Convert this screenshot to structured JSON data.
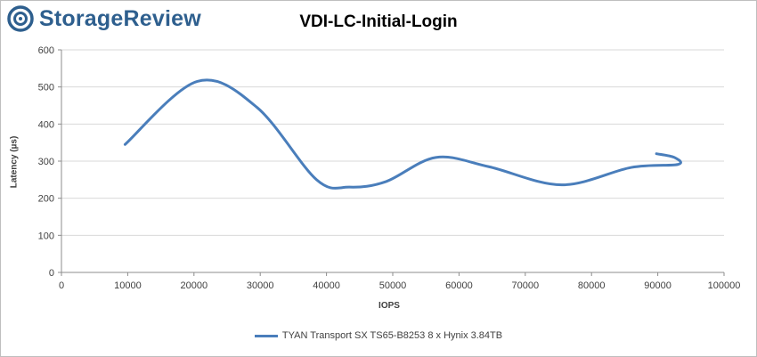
{
  "brand": {
    "name": "StorageReview",
    "logo_color": "#2e5f8e"
  },
  "chart_data": {
    "type": "line",
    "title": "VDI-LC-Initial-Login",
    "xlabel": "IOPS",
    "ylabel": "Latency (µs)",
    "xlim": [
      0,
      100000
    ],
    "ylim": [
      0,
      600
    ],
    "x_ticks": [
      "0",
      "10000",
      "20000",
      "30000",
      "40000",
      "50000",
      "60000",
      "70000",
      "80000",
      "90000",
      "100000"
    ],
    "y_ticks": [
      "0",
      "100",
      "200",
      "300",
      "400",
      "500",
      "600"
    ],
    "grid": "horizontal",
    "legend": "bottom",
    "series": [
      {
        "name": "TYAN Transport SX TS65-B8253 8 x Hynix 3.84TB",
        "color": "#4a7ebb",
        "x": [
          9600,
          20500,
          29500,
          38500,
          43500,
          49000,
          56500,
          64500,
          75500,
          86000,
          93000,
          92500,
          89800
        ],
        "y": [
          345,
          515,
          445,
          250,
          230,
          245,
          310,
          285,
          236,
          283,
          291,
          310,
          320
        ]
      }
    ]
  }
}
